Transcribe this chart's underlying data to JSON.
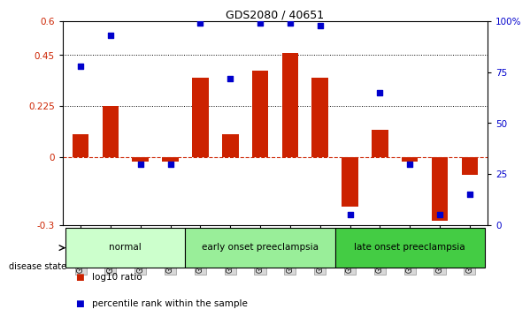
{
  "title": "GDS2080 / 40651",
  "samples": [
    "GSM106249",
    "GSM106250",
    "GSM106274",
    "GSM106275",
    "GSM106276",
    "GSM106277",
    "GSM106278",
    "GSM106279",
    "GSM106280",
    "GSM106281",
    "GSM106282",
    "GSM106283",
    "GSM106284",
    "GSM106285"
  ],
  "log10_ratio": [
    0.1,
    0.225,
    -0.02,
    -0.02,
    0.35,
    0.1,
    0.38,
    0.46,
    0.35,
    -0.22,
    0.12,
    -0.02,
    -0.28,
    -0.08
  ],
  "percentile_rank": [
    78,
    93,
    30,
    30,
    99,
    72,
    99,
    99,
    98,
    5,
    65,
    30,
    5,
    15
  ],
  "groups": [
    {
      "label": "normal",
      "start": 0,
      "end": 4,
      "color": "#ccffcc"
    },
    {
      "label": "early onset preeclampsia",
      "start": 4,
      "end": 9,
      "color": "#99ee99"
    },
    {
      "label": "late onset preeclampsia",
      "start": 9,
      "end": 14,
      "color": "#44cc44"
    }
  ],
  "ylim_left": [
    -0.3,
    0.6
  ],
  "ylim_right": [
    0,
    100
  ],
  "yticks_left": [
    -0.3,
    0.0,
    0.225,
    0.45,
    0.6
  ],
  "yticks_right": [
    0,
    25,
    50,
    75,
    100
  ],
  "hlines": [
    0.45,
    0.225
  ],
  "bar_color": "#cc2200",
  "dot_color": "#0000cc",
  "zero_line_color": "#cc2200",
  "background_color": "#ffffff",
  "bar_width": 0.55,
  "disease_state_label": "disease state",
  "legend_items": [
    {
      "color": "#cc2200",
      "label": "log10 ratio"
    },
    {
      "color": "#0000cc",
      "label": "percentile rank within the sample"
    }
  ]
}
